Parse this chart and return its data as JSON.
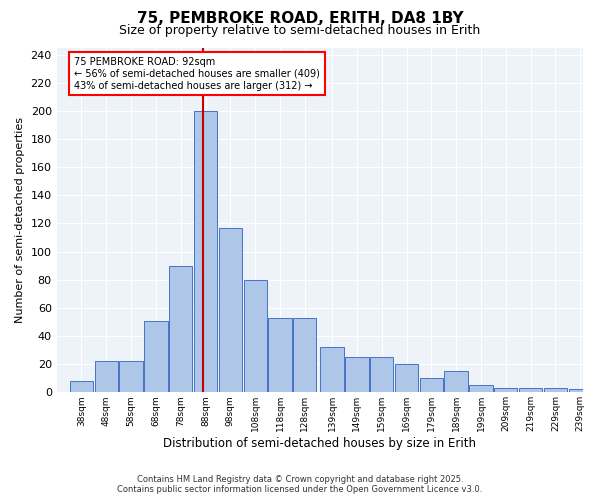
{
  "title": "75, PEMBROKE ROAD, ERITH, DA8 1BY",
  "subtitle": "Size of property relative to semi-detached houses in Erith",
  "xlabel": "Distribution of semi-detached houses by size in Erith",
  "ylabel": "Number of semi-detached properties",
  "property_size": 92,
  "property_label": "75 PEMBROKE ROAD: 92sqm",
  "pct_smaller": 56,
  "pct_larger": 43,
  "count_smaller": 409,
  "count_larger": 312,
  "bin_starts": [
    38,
    48,
    58,
    68,
    78,
    88,
    98,
    108,
    118,
    128,
    139,
    149,
    159,
    169,
    179,
    189,
    199,
    209,
    219,
    229,
    239
  ],
  "bin_labels": [
    "38sqm",
    "48sqm",
    "58sqm",
    "68sqm",
    "78sqm",
    "88sqm",
    "98sqm",
    "108sqm",
    "118sqm",
    "128sqm",
    "139sqm",
    "149sqm",
    "159sqm",
    "169sqm",
    "179sqm",
    "189sqm",
    "199sqm",
    "209sqm",
    "219sqm",
    "229sqm",
    "239sqm"
  ],
  "bar_heights": [
    8,
    22,
    22,
    51,
    90,
    200,
    117,
    80,
    53,
    53,
    32,
    25,
    25,
    20,
    10,
    15,
    5,
    3,
    3,
    3,
    2
  ],
  "bar_color": "#aec6e8",
  "bar_edge_color": "#4472c4",
  "line_color": "#cc0000",
  "background_color": "#eef2f9",
  "ylim": [
    0,
    245
  ],
  "yticks": [
    0,
    20,
    40,
    60,
    80,
    100,
    120,
    140,
    160,
    180,
    200,
    220,
    240
  ],
  "footnote1": "Contains HM Land Registry data © Crown copyright and database right 2025.",
  "footnote2": "Contains public sector information licensed under the Open Government Licence v3.0."
}
